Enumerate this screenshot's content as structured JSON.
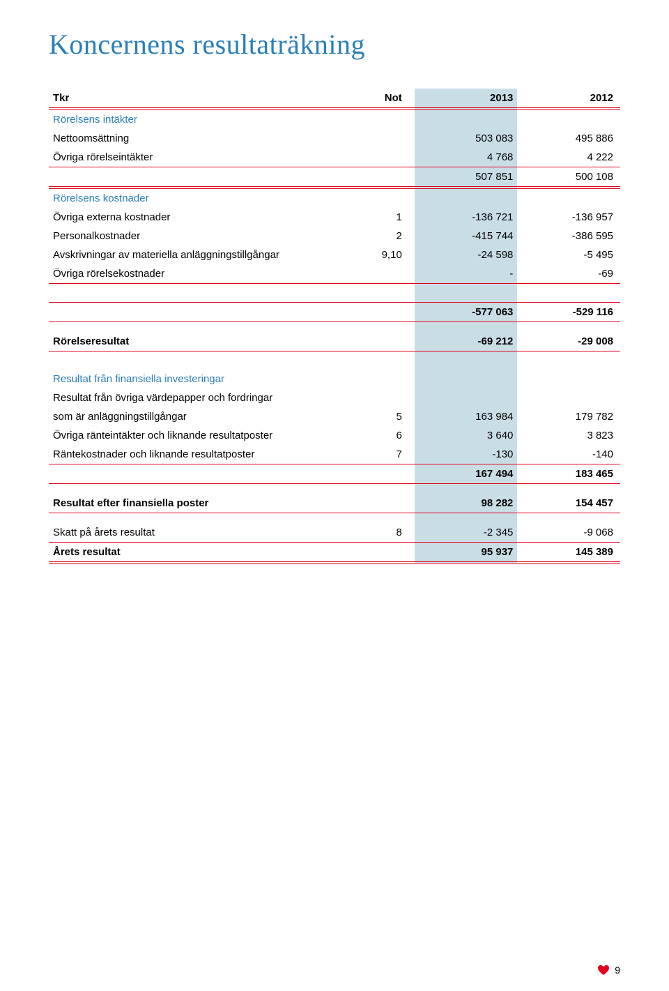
{
  "title": "Koncernens resultaträkning",
  "colors": {
    "accent_blue": "#2a7fb8",
    "border_red": "#e2001a",
    "highlight_bg": "#c9dde5",
    "text": "#000000",
    "page_bg": "#ffffff"
  },
  "header": {
    "label": "Tkr",
    "not": "Not",
    "col1": "2013",
    "col2": "2012"
  },
  "rows": [
    {
      "type": "section",
      "label": "Rörelsens intäkter"
    },
    {
      "type": "data",
      "label": "Nettoomsättning",
      "not": "",
      "c1": "503 083",
      "c2": "495 886"
    },
    {
      "type": "data",
      "label": "Övriga rörelseintäkter",
      "not": "",
      "c1": "4 768",
      "c2": "4 222",
      "bb": "thin"
    },
    {
      "type": "data",
      "label": "",
      "not": "",
      "c1": "507 851",
      "c2": "500 108",
      "bb": "double"
    },
    {
      "type": "section",
      "label": "Rörelsens kostnader"
    },
    {
      "type": "data",
      "label": "Övriga externa kostnader",
      "not": "1",
      "c1": "-136 721",
      "c2": "-136 957"
    },
    {
      "type": "data",
      "label": "Personalkostnader",
      "not": "2",
      "c1": "-415 744",
      "c2": "-386 595"
    },
    {
      "type": "data",
      "label": "Avskrivningar av materiella anläggningstillgångar",
      "not": "9,10",
      "c1": "-24 598",
      "c2": "-5 495"
    },
    {
      "type": "data",
      "label": "Övriga rörelsekostnader",
      "not": "",
      "c1": "-",
      "c2": "-69",
      "bb": "thin"
    },
    {
      "type": "spacer-lg"
    },
    {
      "type": "data",
      "label": "",
      "not": "",
      "c1": "-577 063",
      "c2": "-529 116",
      "bt": "thin",
      "bb": "thin",
      "bold": true
    },
    {
      "type": "spacer"
    },
    {
      "type": "data",
      "label": "Rörelseresultat",
      "not": "",
      "c1": "-69 212",
      "c2": "-29 008",
      "bold": true,
      "bb": "thin"
    },
    {
      "type": "spacer-lg"
    },
    {
      "type": "section",
      "label": "Resultat från finansiella investeringar"
    },
    {
      "type": "data",
      "label": "Resultat från övriga värdepapper och fordringar",
      "not": "",
      "c1": "",
      "c2": ""
    },
    {
      "type": "data",
      "label": "som är anläggningstillgångar",
      "not": "5",
      "c1": "163 984",
      "c2": "179 782"
    },
    {
      "type": "data",
      "label": "Övriga ränteintäkter och liknande resultatposter",
      "not": "6",
      "c1": "3 640",
      "c2": "3 823"
    },
    {
      "type": "data",
      "label": "Räntekostnader och liknande resultatposter",
      "not": "7",
      "c1": "-130",
      "c2": "-140",
      "bb": "thin"
    },
    {
      "type": "data",
      "label": "",
      "not": "",
      "c1": "167 494",
      "c2": "183 465",
      "bb": "thin",
      "bold": true
    },
    {
      "type": "spacer"
    },
    {
      "type": "data",
      "label": "Resultat efter finansiella poster",
      "not": "",
      "c1": "98 282",
      "c2": "154 457",
      "bold": true,
      "bb": "thin"
    },
    {
      "type": "spacer"
    },
    {
      "type": "data",
      "label": "Skatt på årets resultat",
      "not": "8",
      "c1": "-2 345",
      "c2": "-9 068",
      "bb": "thin"
    },
    {
      "type": "data",
      "label": "Årets resultat",
      "not": "",
      "c1": "95 937",
      "c2": "145 389",
      "bold": true,
      "bb": "double"
    }
  ],
  "page_number": "9"
}
